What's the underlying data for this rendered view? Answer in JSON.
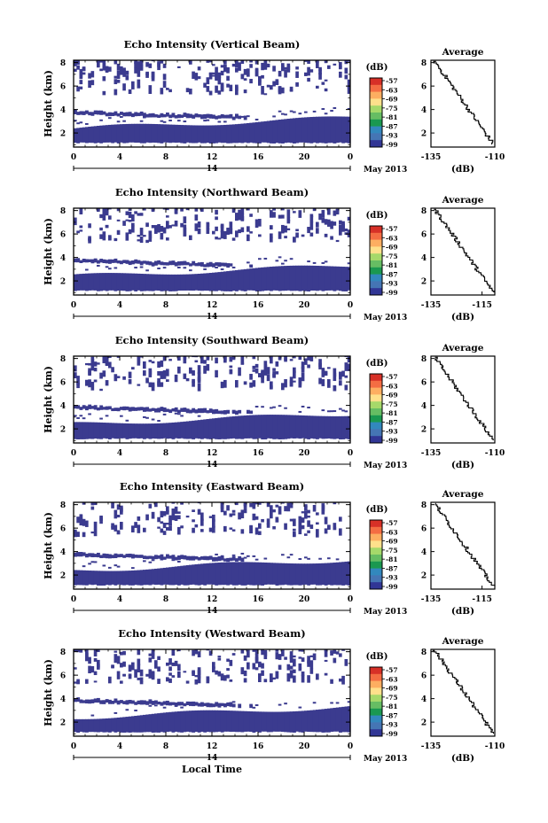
{
  "figure": {
    "xlabel_bottom": "Local Time",
    "date_label": "May 2013",
    "date_mid_label": "14",
    "cbar_unit": "(dB)",
    "cbar_ticks": [
      "-57",
      "-63",
      "-69",
      "-75",
      "-81",
      "-87",
      "-93",
      "-99"
    ],
    "cbar_colors": [
      "#d73027",
      "#f46d43",
      "#fdae61",
      "#fee08b",
      "#a6d96a",
      "#66bd63",
      "#1a9850",
      "#3288bd",
      "#4575b4",
      "#313695"
    ],
    "echo_color": "#3b3b8f"
  },
  "chart_data": [
    {
      "type": "heatmap",
      "title": "Echo Intensity (Vertical Beam)",
      "xlabel": "",
      "ylabel": "Height (km)",
      "xticks": [
        "0",
        "4",
        "8",
        "12",
        "16",
        "20",
        "0"
      ],
      "yticks": [
        "2",
        "4",
        "6",
        "8"
      ],
      "xlim": [
        0,
        24
      ],
      "ylim": [
        0.8,
        8.2
      ],
      "colorbar": {
        "label": "(dB)",
        "range": [
          -99,
          -57
        ]
      },
      "avg_profile": {
        "title": "Average",
        "xlabel": "(dB)",
        "xticks": [
          "-135",
          "-110"
        ],
        "yticks": [
          "2",
          "4",
          "6",
          "8"
        ],
        "xlim": [
          -135,
          -110
        ],
        "ylim": [
          0.8,
          8.2
        ]
      },
      "bands": [
        {
          "name": "lower",
          "y0": 1.1,
          "y1": 2.4
        },
        {
          "name": "upper",
          "y0": 3.5,
          "y1": 3.8
        }
      ]
    },
    {
      "type": "heatmap",
      "title": "Echo Intensity (Northward Beam)",
      "xlabel": "",
      "ylabel": "Height (km)",
      "xticks": [
        "0",
        "4",
        "8",
        "12",
        "16",
        "20",
        "0"
      ],
      "yticks": [
        "2",
        "4",
        "6",
        "8"
      ],
      "xlim": [
        0,
        24
      ],
      "ylim": [
        0.8,
        8.2
      ],
      "colorbar": {
        "label": "(dB)",
        "range": [
          -99,
          -57
        ]
      },
      "avg_profile": {
        "title": "Average",
        "xlabel": "(dB)",
        "xticks": [
          "-135",
          "-115"
        ],
        "yticks": [
          "2",
          "4",
          "6",
          "8"
        ],
        "xlim": [
          -135,
          -110
        ],
        "ylim": [
          0.8,
          8.2
        ]
      },
      "bands": [
        {
          "name": "lower",
          "y0": 1.1,
          "y1": 2.4
        },
        {
          "name": "upper",
          "y0": 3.5,
          "y1": 3.8
        }
      ]
    },
    {
      "type": "heatmap",
      "title": "Echo Intensity (Southward Beam)",
      "xlabel": "",
      "ylabel": "Height (km)",
      "xticks": [
        "0",
        "4",
        "8",
        "12",
        "16",
        "20",
        "0"
      ],
      "yticks": [
        "2",
        "4",
        "6",
        "8"
      ],
      "xlim": [
        0,
        24
      ],
      "ylim": [
        0.8,
        8.2
      ],
      "colorbar": {
        "label": "(dB)",
        "range": [
          -99,
          -57
        ]
      },
      "avg_profile": {
        "title": "Average",
        "xlabel": "(dB)",
        "xticks": [
          "-135",
          "-110"
        ],
        "yticks": [
          "2",
          "4",
          "6",
          "8"
        ],
        "xlim": [
          -135,
          -110
        ],
        "ylim": [
          0.8,
          8.2
        ]
      },
      "bands": [
        {
          "name": "lower",
          "y0": 1.1,
          "y1": 2.4
        },
        {
          "name": "upper",
          "y0": 3.6,
          "y1": 3.9
        }
      ]
    },
    {
      "type": "heatmap",
      "title": "Echo Intensity (Eastward Beam)",
      "xlabel": "",
      "ylabel": "Height (km)",
      "xticks": [
        "0",
        "4",
        "8",
        "12",
        "16",
        "20",
        "0"
      ],
      "yticks": [
        "2",
        "4",
        "6",
        "8"
      ],
      "xlim": [
        0,
        24
      ],
      "ylim": [
        0.8,
        8.2
      ],
      "colorbar": {
        "label": "(dB)",
        "range": [
          -99,
          -57
        ]
      },
      "avg_profile": {
        "title": "Average",
        "xlabel": "(dB)",
        "xticks": [
          "-135",
          "-115"
        ],
        "yticks": [
          "2",
          "4",
          "6",
          "8"
        ],
        "xlim": [
          -135,
          -110
        ],
        "ylim": [
          0.8,
          8.2
        ]
      },
      "bands": [
        {
          "name": "lower",
          "y0": 1.1,
          "y1": 2.4
        },
        {
          "name": "upper",
          "y0": 3.5,
          "y1": 3.8
        }
      ]
    },
    {
      "type": "heatmap",
      "title": "Echo Intensity (Westward Beam)",
      "xlabel": "Local Time",
      "ylabel": "Height (km)",
      "xticks": [
        "0",
        "4",
        "8",
        "12",
        "16",
        "20",
        "0"
      ],
      "yticks": [
        "2",
        "4",
        "6",
        "8"
      ],
      "xlim": [
        0,
        24
      ],
      "ylim": [
        0.8,
        8.2
      ],
      "colorbar": {
        "label": "(dB)",
        "range": [
          -99,
          -57
        ]
      },
      "avg_profile": {
        "title": "Average",
        "xlabel": "(dB)",
        "xticks": [
          "-135",
          "-110"
        ],
        "yticks": [
          "2",
          "4",
          "6",
          "8"
        ],
        "xlim": [
          -135,
          -110
        ],
        "ylim": [
          0.8,
          8.2
        ]
      },
      "bands": [
        {
          "name": "lower",
          "y0": 1.1,
          "y1": 2.4
        },
        {
          "name": "upper",
          "y0": 3.6,
          "y1": 3.9
        }
      ]
    }
  ]
}
